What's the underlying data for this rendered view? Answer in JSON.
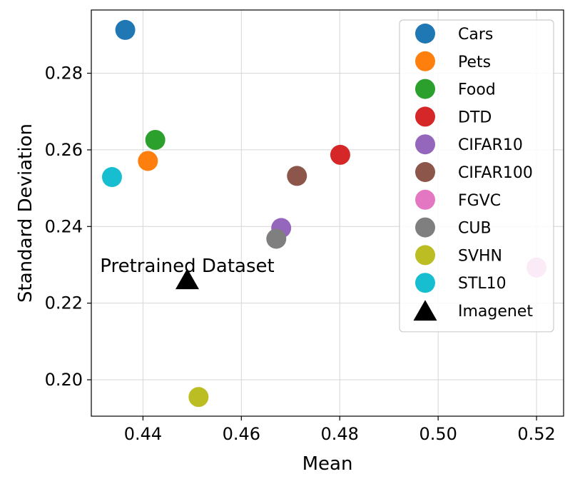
{
  "chart_data": {
    "type": "scatter",
    "title": "",
    "xlabel": "Mean",
    "ylabel": "Standard Deviation",
    "xlim": [
      0.4295,
      0.5255
    ],
    "ylim": [
      0.1905,
      0.2965
    ],
    "xticks": [
      0.44,
      0.46,
      0.48,
      0.5,
      0.52
    ],
    "xtick_labels": [
      "0.44",
      "0.46",
      "0.48",
      "0.50",
      "0.52"
    ],
    "yticks": [
      0.2,
      0.22,
      0.24,
      0.26,
      0.28
    ],
    "ytick_labels": [
      "0.20",
      "0.22",
      "0.24",
      "0.26",
      "0.28"
    ],
    "grid": true,
    "legend_position": "top-right",
    "series": [
      {
        "name": "Cars",
        "color": "#1f77b4",
        "marker": "circle",
        "x": 0.4364,
        "y": 0.2913
      },
      {
        "name": "Pets",
        "color": "#ff7f0e",
        "marker": "circle",
        "x": 0.441,
        "y": 0.2571
      },
      {
        "name": "Food",
        "color": "#2ca02c",
        "marker": "circle",
        "x": 0.4425,
        "y": 0.2626
      },
      {
        "name": "DTD",
        "color": "#d62728",
        "marker": "circle",
        "x": 0.4801,
        "y": 0.2587
      },
      {
        "name": "CIFAR10",
        "color": "#9467bd",
        "marker": "circle",
        "x": 0.4681,
        "y": 0.2396
      },
      {
        "name": "CIFAR100",
        "color": "#8c564b",
        "marker": "circle",
        "x": 0.4713,
        "y": 0.2532
      },
      {
        "name": "FGVC",
        "color": "#e377c2",
        "marker": "circle",
        "x": 0.52,
        "y": 0.2293
      },
      {
        "name": "CUB",
        "color": "#7f7f7f",
        "marker": "circle",
        "x": 0.4671,
        "y": 0.2368
      },
      {
        "name": "SVHN",
        "color": "#bcbd22",
        "marker": "circle",
        "x": 0.4513,
        "y": 0.1955
      },
      {
        "name": "STL10",
        "color": "#17becf",
        "marker": "circle",
        "x": 0.4337,
        "y": 0.2529
      },
      {
        "name": "Imagenet",
        "color": "#000000",
        "marker": "triangle",
        "x": 0.449,
        "y": 0.2259
      }
    ],
    "annotations": [
      {
        "text": "Pretrained Dataset",
        "x": 0.449,
        "y": 0.2259
      }
    ]
  }
}
